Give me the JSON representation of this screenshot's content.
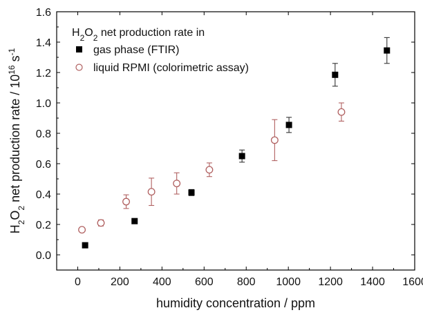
{
  "chart_data": {
    "type": "scatter",
    "title": "",
    "xlabel": "humidity concentration / ppm",
    "ylabel": {
      "parts": [
        {
          "text": "H",
          "sub": false
        },
        {
          "text": "2",
          "sub": true
        },
        {
          "text": "O",
          "sub": false
        },
        {
          "text": "2",
          "sub": true
        },
        {
          "text": " net production rate / 10",
          "sub": false
        },
        {
          "text": "16",
          "sup": true
        },
        {
          "text": " s",
          "sub": false
        },
        {
          "text": "-1",
          "sup": true
        }
      ]
    },
    "xlim": [
      -100,
      1600
    ],
    "ylim": [
      -0.1,
      1.6
    ],
    "xticks": [
      0,
      200,
      400,
      600,
      800,
      1000,
      1200,
      1400,
      1600
    ],
    "yticks": [
      0.0,
      0.2,
      0.4,
      0.6,
      0.8,
      1.0,
      1.2,
      1.4,
      1.6
    ],
    "xtick_labels": [
      "0",
      "200",
      "400",
      "600",
      "800",
      "1000",
      "1200",
      "1400",
      "1600"
    ],
    "ytick_labels": [
      "0.0",
      "0.2",
      "0.4",
      "0.6",
      "0.8",
      "1.0",
      "1.2",
      "1.4",
      "1.6"
    ],
    "grid": false,
    "legend": {
      "placement": "top-left",
      "title_parts": [
        {
          "text": "H",
          "sub": false
        },
        {
          "text": "2",
          "sub": true
        },
        {
          "text": "O",
          "sub": false
        },
        {
          "text": "2",
          "sub": true
        },
        {
          "text": " net production rate in",
          "sub": false
        }
      ]
    },
    "series": [
      {
        "name": "gas phase (FTIR)",
        "marker": "filled-square",
        "color": "#000000",
        "points": [
          {
            "x": 35,
            "y": 0.063,
            "err": 0
          },
          {
            "x": 270,
            "y": 0.222,
            "err": 0
          },
          {
            "x": 540,
            "y": 0.41,
            "err": 0.02
          },
          {
            "x": 780,
            "y": 0.65,
            "err": 0.04
          },
          {
            "x": 1003,
            "y": 0.855,
            "err": 0.05
          },
          {
            "x": 1222,
            "y": 1.185,
            "err": 0.075
          },
          {
            "x": 1468,
            "y": 1.345,
            "err": 0.085
          }
        ]
      },
      {
        "name": "liquid RPMI (colorimetric assay)",
        "marker": "open-circle",
        "color": "#b06060",
        "points": [
          {
            "x": 20,
            "y": 0.165,
            "err": 0.01
          },
          {
            "x": 110,
            "y": 0.21,
            "err": 0.02
          },
          {
            "x": 230,
            "y": 0.35,
            "err": 0.045
          },
          {
            "x": 350,
            "y": 0.415,
            "err": 0.09
          },
          {
            "x": 470,
            "y": 0.47,
            "err": 0.07
          },
          {
            "x": 625,
            "y": 0.56,
            "err": 0.045
          },
          {
            "x": 935,
            "y": 0.755,
            "err": 0.135
          },
          {
            "x": 1252,
            "y": 0.94,
            "err": 0.06
          }
        ]
      }
    ]
  }
}
